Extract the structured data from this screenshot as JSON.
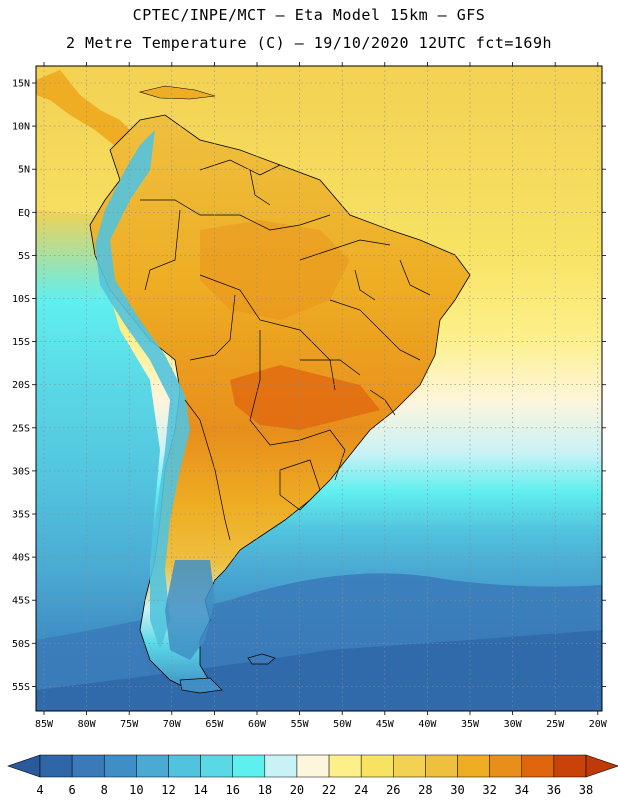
{
  "header": {
    "line1": "CPTEC/INPE/MCT –  Eta Model 15km – GFS",
    "line2": "2 Metre Temperature (C) – 19/10/2020 12UTC fct=169h"
  },
  "axes": {
    "lat_labels": [
      "15N",
      "10N",
      "5N",
      "EQ",
      "5S",
      "10S",
      "15S",
      "20S",
      "25S",
      "30S",
      "35S",
      "40S",
      "45S",
      "50S",
      "55S"
    ],
    "lon_labels": [
      "85W",
      "80W",
      "75W",
      "70W",
      "65W",
      "60W",
      "55W",
      "50W",
      "45W",
      "40W",
      "35W",
      "30W",
      "25W",
      "20W"
    ]
  },
  "colorbar": {
    "labels": [
      "4",
      "6",
      "8",
      "10",
      "12",
      "14",
      "16",
      "18",
      "20",
      "22",
      "24",
      "26",
      "28",
      "30",
      "32",
      "34",
      "36",
      "38"
    ],
    "colors": [
      "#2f66a8",
      "#3a7ab9",
      "#3f8fc6",
      "#4aaad3",
      "#52c3de",
      "#5ad8e6",
      "#60efef",
      "#c9f2f6",
      "#fdf5dc",
      "#fdf08a",
      "#f7e262",
      "#f3d153",
      "#efc040",
      "#eead23",
      "#e88e1b",
      "#e0650f",
      "#c9420a"
    ],
    "under_color": "#2a5a9b",
    "over_color": "#c03a08"
  },
  "map_colors": {
    "ocean_far_south": "#2f66a8",
    "ocean_south": "#3a7ab9",
    "ocean_mid": "#4aaad3",
    "ocean_temperate": "#52c3de",
    "ocean_subtrop": "#5ad8e6",
    "ocean_tropical": "#f3d153",
    "ocean_warm_n": "#f7e262",
    "land_hot": "#eead23",
    "land_very_hot": "#e0650f",
    "land_warm": "#efc040",
    "andes_cold": "#52c3de",
    "patagonia": "#3f8fc6",
    "border": "#000000",
    "grid": "#8c8c8c"
  }
}
